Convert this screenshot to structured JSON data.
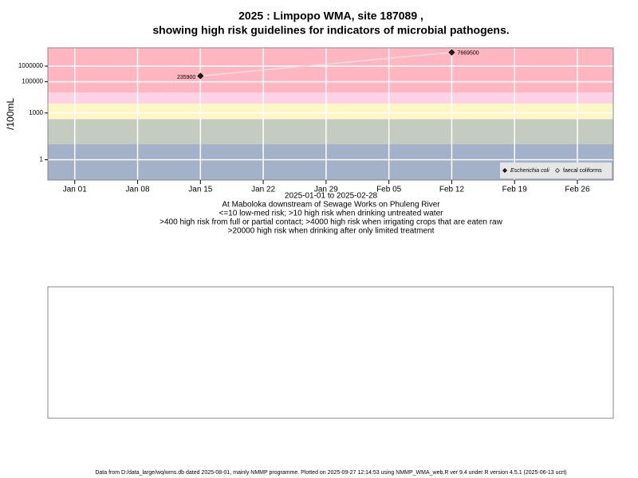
{
  "chart_data": {
    "type": "line",
    "title": "2025 : Limpopo WMA, site 187089 ,",
    "subtitle": "showing high risk guidelines for indicators of microbial pathogens.",
    "ylabel": "/100mL",
    "notes": [
      "2025-01-01 to 2025-02-28",
      "At Maboloka downstream of Sewage Works on Phuleng River",
      "<=10 low-med risk; >10 high risk when drinking untreated water",
      ">400 high risk from full or partial contact; >4000 high risk when irrigating crops that are eaten raw",
      ">20000 high risk when drinking after only limited treatment"
    ],
    "footer": "Data from D:/data_large/wq/wms.db dated 2025-08-01, mainly NMMP programme. Plotted on 2025-09-27 12:14:53 using NMMP_WMA_web.R ver 9.4 under R version 4.5.1 (2025-06-13 ucrt)",
    "log_y": true,
    "grid": true,
    "ylim": [
      0.05,
      15000000
    ],
    "yticks": [
      1,
      1000,
      100000,
      1000000
    ],
    "xlim": [
      "2024-12-29",
      "2025-03-02"
    ],
    "xticks": [
      {
        "value": "2025-01-01",
        "label": "Jan 01"
      },
      {
        "value": "2025-01-08",
        "label": "Jan 08"
      },
      {
        "value": "2025-01-15",
        "label": "Jan 15"
      },
      {
        "value": "2025-01-22",
        "label": "Jan 22"
      },
      {
        "value": "2025-01-29",
        "label": "Jan 29"
      },
      {
        "value": "2025-02-05",
        "label": "Feb 05"
      },
      {
        "value": "2025-02-12",
        "label": "Feb 12"
      },
      {
        "value": "2025-02-19",
        "label": "Feb 19"
      },
      {
        "value": "2025-02-26",
        "label": "Feb 26"
      }
    ],
    "thresholds": [
      10,
      400,
      4000,
      20000
    ],
    "band_colors": [
      "#a3b1c9",
      "#c3ccbf",
      "#fff6c6",
      "#fcd3e6",
      "#ffb6c1"
    ],
    "legend_position": "bottom-right",
    "series": [
      {
        "name": "Escherichia coli",
        "color": "#222222",
        "line_color": "#e0e0e0",
        "x": [
          "2025-01-15",
          "2025-02-12"
        ],
        "values": [
          235900,
          7669500
        ]
      },
      {
        "name": "faecal coliforms",
        "color": "#ffffff",
        "line_color": "#e0e0e0",
        "x": [],
        "values": []
      }
    ]
  }
}
